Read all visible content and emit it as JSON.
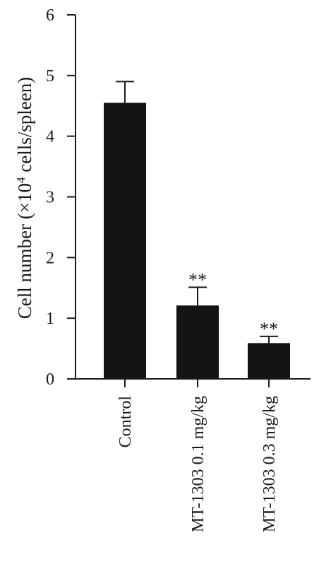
{
  "chart_data": {
    "type": "bar",
    "categories": [
      "Control",
      "MT-1303 0.1 mg/kg",
      "MT-1303 0.3 mg/kg"
    ],
    "values": [
      4.55,
      1.21,
      0.59
    ],
    "error_upper": [
      0.35,
      0.3,
      0.11
    ],
    "significance": [
      "",
      "**",
      "**"
    ],
    "ylabel": {
      "prefix": "Cell number (×10",
      "superscript": "4",
      "suffix": " cells/spleen)"
    },
    "ylim": [
      0,
      6
    ],
    "yticks": [
      0,
      1,
      2,
      3,
      4,
      5,
      6
    ],
    "grid": false,
    "colors": {
      "bar": "#141414",
      "axis": "#1a1a1a"
    }
  }
}
